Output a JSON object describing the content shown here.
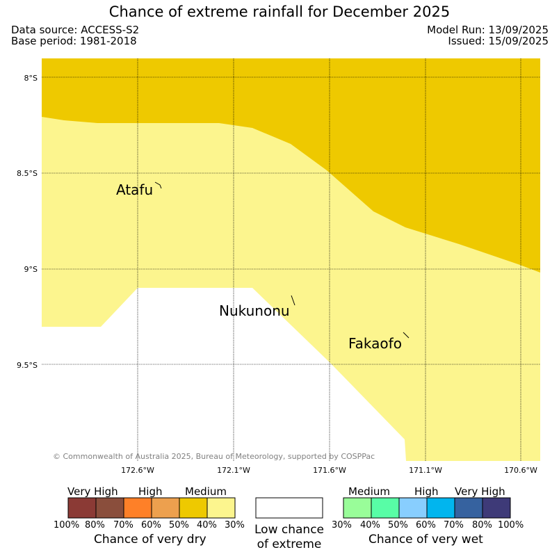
{
  "header": {
    "title": "Chance of extreme rainfall for December 2025",
    "data_source": "Data source: ACCESS-S2",
    "base_period": "Base period: 1981-2018",
    "model_run": "Model Run: 13/09/2025",
    "issued": "Issued: 15/09/2025"
  },
  "map": {
    "lat_labels": [
      "8°S",
      "8.5°S",
      "9°S",
      "9.5°S"
    ],
    "lon_labels": [
      "172.6°W",
      "172.1°W",
      "171.6°W",
      "171.1°W",
      "170.6°W"
    ],
    "places": [
      "Atafu",
      "Nukunonu",
      "Fakaofo"
    ],
    "copyright": "© Commonwealth of Australia 2025, Bureau of Meteorology, supported by COSPPac",
    "zones": [
      {
        "name": "Medium (40-50%) chance of very dry",
        "color": "#eec900"
      },
      {
        "name": "30-40% chance of very dry",
        "color": "#fcf58e"
      },
      {
        "name": "Low chance of extreme",
        "color": "#ffffff"
      }
    ]
  },
  "legend": {
    "dry": {
      "headers": [
        "Very High",
        "High",
        "Medium"
      ],
      "colors": [
        "#8b3a35",
        "#8a4e3c",
        "#fe8028",
        "#eda04e",
        "#eec900",
        "#fcf58e"
      ],
      "ticks": [
        "100%",
        "80%",
        "70%",
        "60%",
        "50%",
        "40%",
        "30%"
      ],
      "title": "Chance of very dry"
    },
    "low": {
      "line1": "Low chance",
      "line2": "of extreme",
      "color": "#ffffff"
    },
    "wet": {
      "headers": [
        "Medium",
        "High",
        "Very High"
      ],
      "colors": [
        "#99fd99",
        "#58fda6",
        "#88cefe",
        "#01b5ee",
        "#36629f",
        "#3e3a78"
      ],
      "ticks": [
        "30%",
        "40%",
        "50%",
        "60%",
        "70%",
        "80%",
        "100%"
      ],
      "title": "Chance of very wet"
    }
  }
}
